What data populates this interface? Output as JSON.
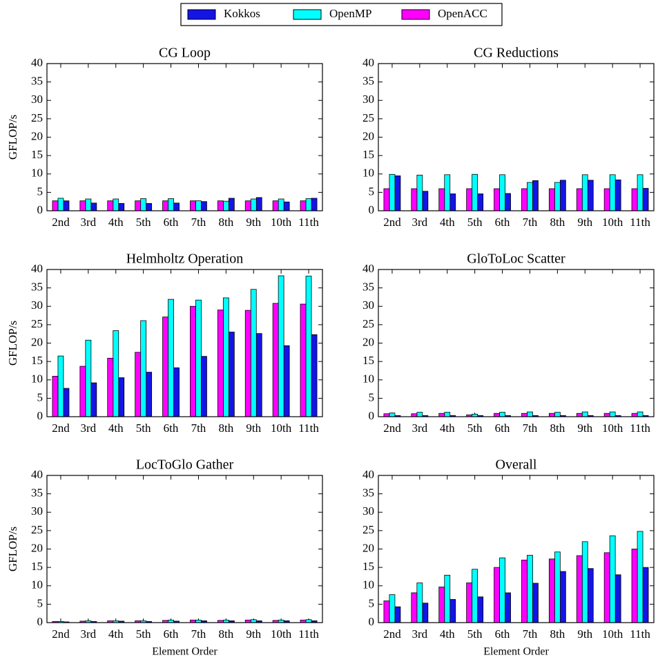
{
  "chart_data": [
    {
      "type": "bar",
      "title": "CG Loop",
      "ylabel": "GFLOP/s",
      "categories": [
        "2nd",
        "3rd",
        "4th",
        "5th",
        "6th",
        "7th",
        "8th",
        "9th",
        "10th",
        "11th"
      ],
      "series": [
        {
          "name": "Kokkos",
          "color": "#1414e6",
          "values": [
            2.7,
            2.1,
            2.0,
            2.0,
            2.1,
            2.5,
            3.4,
            3.6,
            2.4,
            3.4
          ]
        },
        {
          "name": "OpenMP",
          "color": "#00ffff",
          "values": [
            3.4,
            3.2,
            3.2,
            3.3,
            3.3,
            2.7,
            2.6,
            3.2,
            3.2,
            3.3
          ]
        },
        {
          "name": "OpenACC",
          "color": "#ff00ff",
          "values": [
            2.7,
            2.7,
            2.7,
            2.7,
            2.7,
            2.7,
            2.7,
            2.7,
            2.7,
            2.7
          ]
        }
      ],
      "ylim": [
        0,
        40
      ],
      "yticks": [
        0,
        5,
        10,
        15,
        20,
        25,
        30,
        35,
        40
      ]
    },
    {
      "type": "bar",
      "title": "CG Reductions",
      "categories": [
        "2nd",
        "3rd",
        "4th",
        "5th",
        "6th",
        "7th",
        "8th",
        "9th",
        "10th",
        "11th"
      ],
      "series": [
        {
          "color": "#1414e6",
          "values": [
            9.5,
            5.3,
            4.6,
            4.6,
            4.7,
            8.2,
            8.3,
            8.3,
            8.4,
            6.1
          ]
        },
        {
          "color": "#00ffff",
          "values": [
            9.9,
            9.7,
            9.8,
            9.9,
            9.8,
            7.7,
            7.7,
            9.8,
            9.8,
            9.8
          ]
        },
        {
          "color": "#ff00ff",
          "values": [
            6.0,
            6.0,
            6.0,
            6.0,
            6.0,
            6.0,
            6.0,
            6.0,
            6.0,
            6.0
          ]
        }
      ],
      "ylim": [
        0,
        40
      ],
      "yticks": [
        0,
        5,
        10,
        15,
        20,
        25,
        30,
        35,
        40
      ]
    },
    {
      "type": "bar",
      "title": "Helmholtz Operation",
      "ylabel": "GFLOP/s",
      "categories": [
        "2nd",
        "3rd",
        "4th",
        "5th",
        "6th",
        "7th",
        "8th",
        "9th",
        "10th",
        "11th"
      ],
      "series": [
        {
          "color": "#1414e6",
          "values": [
            7.7,
            9.2,
            10.6,
            12.1,
            13.3,
            16.4,
            23.0,
            22.6,
            19.3,
            22.3
          ]
        },
        {
          "color": "#00ffff",
          "values": [
            16.5,
            20.8,
            23.4,
            26.1,
            31.9,
            31.7,
            32.3,
            34.6,
            38.3,
            38.2
          ]
        },
        {
          "color": "#ff00ff",
          "values": [
            11.0,
            13.7,
            15.9,
            17.5,
            27.1,
            30.0,
            29.0,
            28.9,
            30.8,
            30.6
          ]
        }
      ],
      "ylim": [
        0,
        40
      ],
      "yticks": [
        0,
        5,
        10,
        15,
        20,
        25,
        30,
        35,
        40
      ]
    },
    {
      "type": "bar",
      "title": "GloToLoc Scatter",
      "categories": [
        "2nd",
        "3rd",
        "4th",
        "5th",
        "6th",
        "7th",
        "8th",
        "9th",
        "10th",
        "11th"
      ],
      "series": [
        {
          "color": "#1414e6",
          "values": [
            0.3,
            0.3,
            0.3,
            0.3,
            0.3,
            0.3,
            0.3,
            0.3,
            0.3,
            0.3
          ]
        },
        {
          "color": "#00ffff",
          "values": [
            1.0,
            1.2,
            1.2,
            0.7,
            1.2,
            1.3,
            1.2,
            1.3,
            1.3,
            1.3
          ]
        },
        {
          "color": "#ff00ff",
          "values": [
            0.8,
            0.8,
            0.9,
            0.5,
            0.9,
            0.9,
            0.9,
            0.9,
            0.9,
            0.9
          ]
        }
      ],
      "ylim": [
        0,
        40
      ],
      "yticks": [
        0,
        5,
        10,
        15,
        20,
        25,
        30,
        35,
        40
      ]
    },
    {
      "type": "bar",
      "title": "LocToGlo Gather",
      "ylabel": "GFLOP/s",
      "xlabel": "Element Order",
      "categories": [
        "2nd",
        "3rd",
        "4th",
        "5th",
        "6th",
        "7th",
        "8th",
        "9th",
        "10th",
        "11th"
      ],
      "series": [
        {
          "color": "#1414e6",
          "values": [
            0.2,
            0.3,
            0.4,
            0.3,
            0.4,
            0.5,
            0.5,
            0.5,
            0.5,
            0.5
          ]
        },
        {
          "color": "#00ffff",
          "values": [
            0.3,
            0.5,
            0.5,
            0.5,
            0.7,
            0.7,
            0.7,
            0.8,
            0.7,
            0.8
          ]
        },
        {
          "color": "#ff00ff",
          "values": [
            0.3,
            0.4,
            0.5,
            0.5,
            0.6,
            0.7,
            0.6,
            0.7,
            0.6,
            0.7
          ]
        }
      ],
      "ylim": [
        0,
        40
      ],
      "yticks": [
        0,
        5,
        10,
        15,
        20,
        25,
        30,
        35,
        40
      ]
    },
    {
      "type": "bar",
      "title": "Overall",
      "xlabel": "Element Order",
      "categories": [
        "2nd",
        "3rd",
        "4th",
        "5th",
        "6th",
        "7th",
        "8th",
        "9th",
        "10th",
        "11th"
      ],
      "series": [
        {
          "color": "#1414e6",
          "values": [
            4.3,
            5.3,
            6.3,
            7.0,
            8.1,
            10.7,
            13.9,
            14.7,
            13.0,
            15.0
          ]
        },
        {
          "color": "#00ffff",
          "values": [
            7.6,
            10.8,
            12.9,
            14.5,
            17.6,
            18.3,
            19.2,
            22.0,
            23.6,
            24.8
          ]
        },
        {
          "color": "#ff00ff",
          "values": [
            5.9,
            8.1,
            9.7,
            10.8,
            15.0,
            17.0,
            17.3,
            18.2,
            19.0,
            20.0
          ]
        }
      ],
      "ylim": [
        0,
        40
      ],
      "yticks": [
        0,
        5,
        10,
        15,
        20,
        25,
        30,
        35,
        40
      ]
    }
  ]
}
